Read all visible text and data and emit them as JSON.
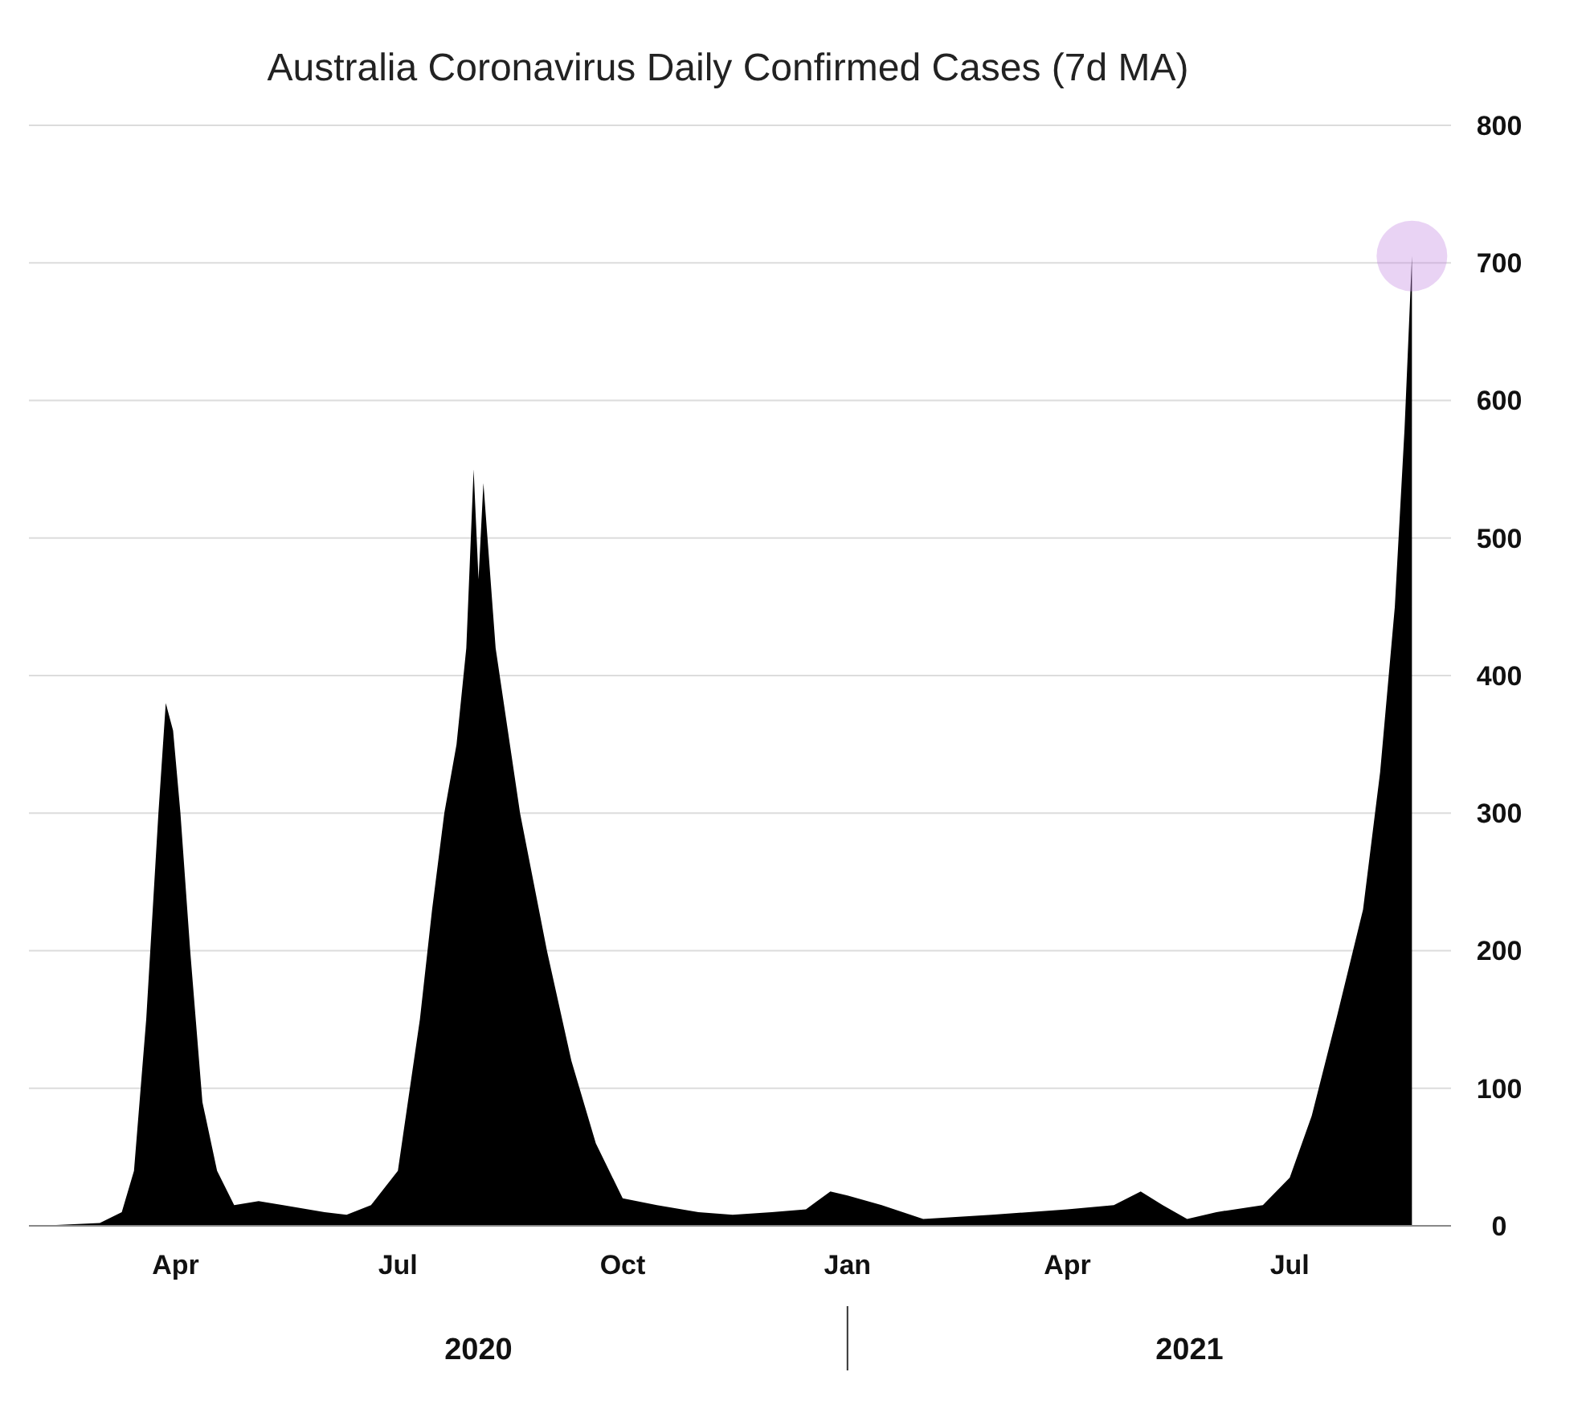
{
  "chart_data": {
    "type": "area",
    "title": "Australia Coronavirus Daily Confirmed Cases (7d MA)",
    "x": [
      "2020-02-05",
      "2020-03-01",
      "2020-03-10",
      "2020-03-15",
      "2020-03-20",
      "2020-03-25",
      "2020-03-28",
      "2020-03-31",
      "2020-04-03",
      "2020-04-07",
      "2020-04-12",
      "2020-04-18",
      "2020-04-25",
      "2020-05-05",
      "2020-05-15",
      "2020-06-01",
      "2020-06-10",
      "2020-06-20",
      "2020-07-01",
      "2020-07-10",
      "2020-07-15",
      "2020-07-20",
      "2020-07-25",
      "2020-07-29",
      "2020-08-01",
      "2020-08-03",
      "2020-08-05",
      "2020-08-10",
      "2020-08-20",
      "2020-08-31",
      "2020-09-10",
      "2020-09-20",
      "2020-10-01",
      "2020-10-15",
      "2020-11-01",
      "2020-11-15",
      "2020-12-01",
      "2020-12-15",
      "2020-12-25",
      "2021-01-01",
      "2021-01-15",
      "2021-02-01",
      "2021-03-01",
      "2021-04-01",
      "2021-04-20",
      "2021-05-01",
      "2021-05-10",
      "2021-05-20",
      "2021-06-01",
      "2021-06-20",
      "2021-07-01",
      "2021-07-10",
      "2021-07-20",
      "2021-07-31",
      "2021-08-07",
      "2021-08-13",
      "2021-08-17",
      "2021-08-20"
    ],
    "values": [
      0,
      2,
      10,
      40,
      150,
      300,
      380,
      360,
      300,
      200,
      90,
      40,
      15,
      18,
      15,
      10,
      8,
      15,
      40,
      150,
      230,
      300,
      350,
      420,
      550,
      470,
      540,
      420,
      300,
      200,
      120,
      60,
      20,
      15,
      10,
      8,
      10,
      12,
      25,
      22,
      15,
      5,
      8,
      12,
      15,
      25,
      15,
      5,
      10,
      15,
      35,
      80,
      150,
      230,
      330,
      450,
      580,
      705
    ],
    "color": "#000000",
    "xlim": [
      "2020-02-01",
      "2021-09-05"
    ],
    "xticks": [
      {
        "value": "2020-04-01",
        "label": "Apr"
      },
      {
        "value": "2020-07-01",
        "label": "Jul"
      },
      {
        "value": "2020-10-01",
        "label": "Oct"
      },
      {
        "value": "2021-01-01",
        "label": "Jan"
      },
      {
        "value": "2021-04-01",
        "label": "Apr"
      },
      {
        "value": "2021-07-01",
        "label": "Jul"
      }
    ],
    "ylim": [
      0,
      800
    ],
    "yticks": [
      0,
      100,
      200,
      300,
      400,
      500,
      600,
      700,
      800
    ],
    "grid": "y",
    "annotations": [
      "2020",
      "2021"
    ]
  }
}
